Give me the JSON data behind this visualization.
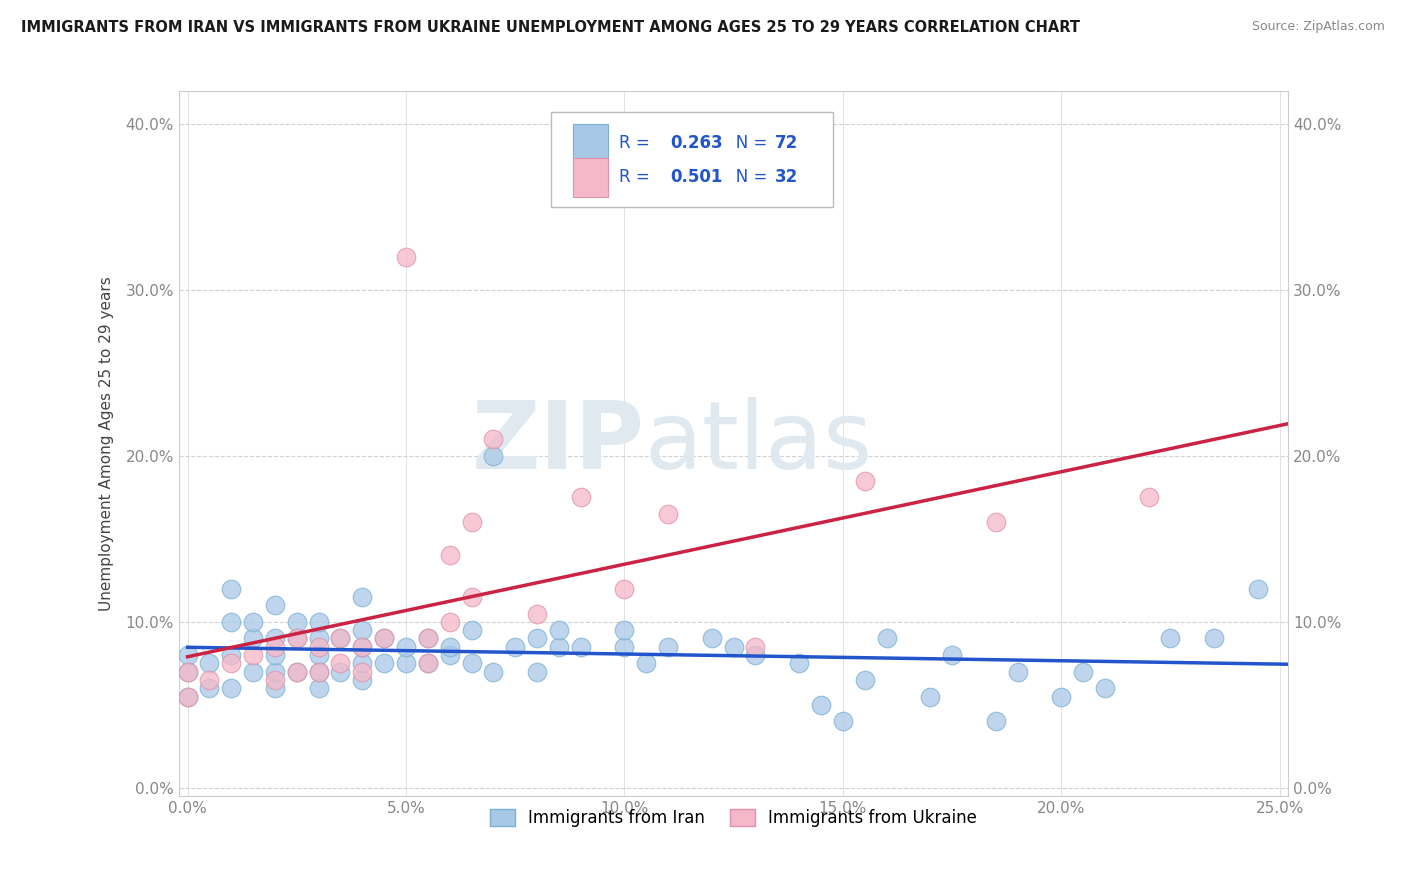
{
  "title": "IMMIGRANTS FROM IRAN VS IMMIGRANTS FROM UKRAINE UNEMPLOYMENT AMONG AGES 25 TO 29 YEARS CORRELATION CHART",
  "source": "Source: ZipAtlas.com",
  "ylabel": "Unemployment Among Ages 25 to 29 years",
  "x_tick_labels": [
    "0.0%",
    "",
    "",
    "",
    "",
    "",
    "",
    "",
    "",
    "",
    "5.0%",
    "",
    "",
    "",
    "",
    "",
    "",
    "",
    "",
    "",
    "10.0%",
    "",
    "",
    "",
    "",
    "",
    "",
    "",
    "",
    "",
    "15.0%",
    "",
    "",
    "",
    "",
    "",
    "",
    "",
    "",
    "",
    "20.0%",
    "",
    "",
    "",
    "",
    "",
    "",
    "",
    "",
    "",
    "25.0%"
  ],
  "x_tick_values": [
    0.0,
    0.005,
    0.01,
    0.015,
    0.02,
    0.025,
    0.03,
    0.035,
    0.04,
    0.045,
    0.05,
    0.055,
    0.06,
    0.065,
    0.07,
    0.075,
    0.08,
    0.085,
    0.09,
    0.095,
    0.1,
    0.105,
    0.11,
    0.115,
    0.12,
    0.125,
    0.13,
    0.135,
    0.14,
    0.145,
    0.15,
    0.155,
    0.16,
    0.165,
    0.17,
    0.175,
    0.18,
    0.185,
    0.19,
    0.195,
    0.2,
    0.205,
    0.21,
    0.215,
    0.22,
    0.225,
    0.23,
    0.235,
    0.24,
    0.245,
    0.25
  ],
  "x_major_ticks": [
    0.0,
    0.05,
    0.1,
    0.15,
    0.2,
    0.25
  ],
  "x_major_labels": [
    "0.0%",
    "5.0%",
    "10.0%",
    "15.0%",
    "20.0%",
    "25.0%"
  ],
  "y_tick_labels": [
    "0.0%",
    "10.0%",
    "20.0%",
    "30.0%",
    "40.0%"
  ],
  "y_tick_values": [
    0.0,
    0.1,
    0.2,
    0.3,
    0.4
  ],
  "xlim": [
    -0.002,
    0.252
  ],
  "ylim": [
    -0.005,
    0.42
  ],
  "iran_color": "#a8c8e8",
  "ukraine_color": "#f5b8c8",
  "iran_edge_color": "#7aafd0",
  "ukraine_edge_color": "#e090a8",
  "iran_R": 0.263,
  "iran_N": 72,
  "ukraine_R": 0.501,
  "ukraine_N": 32,
  "iran_line_color": "#2255cc",
  "ukraine_line_color": "#cc2244",
  "legend_text_color": "#2255cc",
  "watermark_color": "#e0e8f0",
  "legend_iran": "Immigrants from Iran",
  "legend_ukraine": "Immigrants from Ukraine",
  "iran_scatter_x": [
    0.0,
    0.0,
    0.0,
    0.005,
    0.005,
    0.01,
    0.01,
    0.01,
    0.01,
    0.015,
    0.015,
    0.015,
    0.02,
    0.02,
    0.02,
    0.02,
    0.02,
    0.025,
    0.025,
    0.025,
    0.03,
    0.03,
    0.03,
    0.03,
    0.03,
    0.035,
    0.035,
    0.04,
    0.04,
    0.04,
    0.04,
    0.04,
    0.045,
    0.045,
    0.05,
    0.05,
    0.055,
    0.055,
    0.06,
    0.06,
    0.065,
    0.065,
    0.07,
    0.07,
    0.075,
    0.08,
    0.08,
    0.085,
    0.085,
    0.09,
    0.1,
    0.1,
    0.105,
    0.11,
    0.12,
    0.125,
    0.13,
    0.14,
    0.145,
    0.15,
    0.155,
    0.16,
    0.17,
    0.175,
    0.185,
    0.19,
    0.2,
    0.205,
    0.21,
    0.225,
    0.235,
    0.245
  ],
  "iran_scatter_y": [
    0.055,
    0.07,
    0.08,
    0.06,
    0.075,
    0.06,
    0.08,
    0.1,
    0.12,
    0.07,
    0.09,
    0.1,
    0.06,
    0.07,
    0.08,
    0.09,
    0.11,
    0.07,
    0.09,
    0.1,
    0.06,
    0.07,
    0.08,
    0.09,
    0.1,
    0.07,
    0.09,
    0.065,
    0.075,
    0.085,
    0.095,
    0.115,
    0.075,
    0.09,
    0.075,
    0.085,
    0.075,
    0.09,
    0.08,
    0.085,
    0.075,
    0.095,
    0.07,
    0.2,
    0.085,
    0.07,
    0.09,
    0.085,
    0.095,
    0.085,
    0.085,
    0.095,
    0.075,
    0.085,
    0.09,
    0.085,
    0.08,
    0.075,
    0.05,
    0.04,
    0.065,
    0.09,
    0.055,
    0.08,
    0.04,
    0.07,
    0.055,
    0.07,
    0.06,
    0.09,
    0.09,
    0.12
  ],
  "ukraine_scatter_x": [
    0.0,
    0.0,
    0.005,
    0.01,
    0.015,
    0.02,
    0.02,
    0.025,
    0.025,
    0.03,
    0.03,
    0.035,
    0.035,
    0.04,
    0.04,
    0.045,
    0.05,
    0.055,
    0.055,
    0.06,
    0.06,
    0.065,
    0.065,
    0.07,
    0.08,
    0.09,
    0.1,
    0.11,
    0.13,
    0.155,
    0.185,
    0.22
  ],
  "ukraine_scatter_y": [
    0.055,
    0.07,
    0.065,
    0.075,
    0.08,
    0.065,
    0.085,
    0.07,
    0.09,
    0.07,
    0.085,
    0.075,
    0.09,
    0.07,
    0.085,
    0.09,
    0.32,
    0.075,
    0.09,
    0.14,
    0.1,
    0.16,
    0.115,
    0.21,
    0.105,
    0.175,
    0.12,
    0.165,
    0.085,
    0.185,
    0.16,
    0.175
  ]
}
